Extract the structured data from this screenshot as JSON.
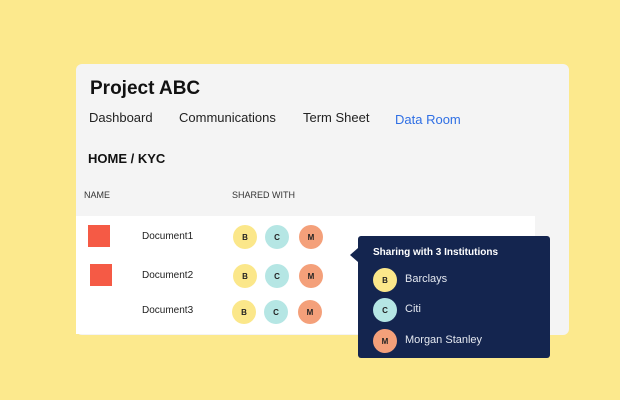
{
  "project": {
    "title": "Project ABC"
  },
  "tabs": [
    {
      "label": "Dashboard"
    },
    {
      "label": "Communications"
    },
    {
      "label": "Term Sheet"
    },
    {
      "label": "Data Room",
      "active": true
    }
  ],
  "breadcrumb": "HOME / KYC",
  "columns": {
    "name": "NAME",
    "shared": "SHARED WITH"
  },
  "documents": [
    {
      "name": "Document1",
      "icon": "red-square",
      "shared": [
        "B",
        "C",
        "M"
      ]
    },
    {
      "name": "Document2",
      "icon": "red-square",
      "shared": [
        "B",
        "C",
        "M"
      ]
    },
    {
      "name": "Document3",
      "shared": [
        "B",
        "C",
        "M"
      ]
    }
  ],
  "tooltip": {
    "title": "Sharing with 3 Institutions",
    "institutions": [
      {
        "initial": "B",
        "name": "Barclays"
      },
      {
        "initial": "C",
        "name": "Citi"
      },
      {
        "initial": "M",
        "name": "Morgan Stanley"
      }
    ]
  },
  "colors": {
    "B": "#fbe78a",
    "C": "#b5e6e4",
    "M": "#f4a07a",
    "accent": "#2f6fe4",
    "tooltip_bg": "#14254f",
    "doc_icon": "#f55a45"
  }
}
